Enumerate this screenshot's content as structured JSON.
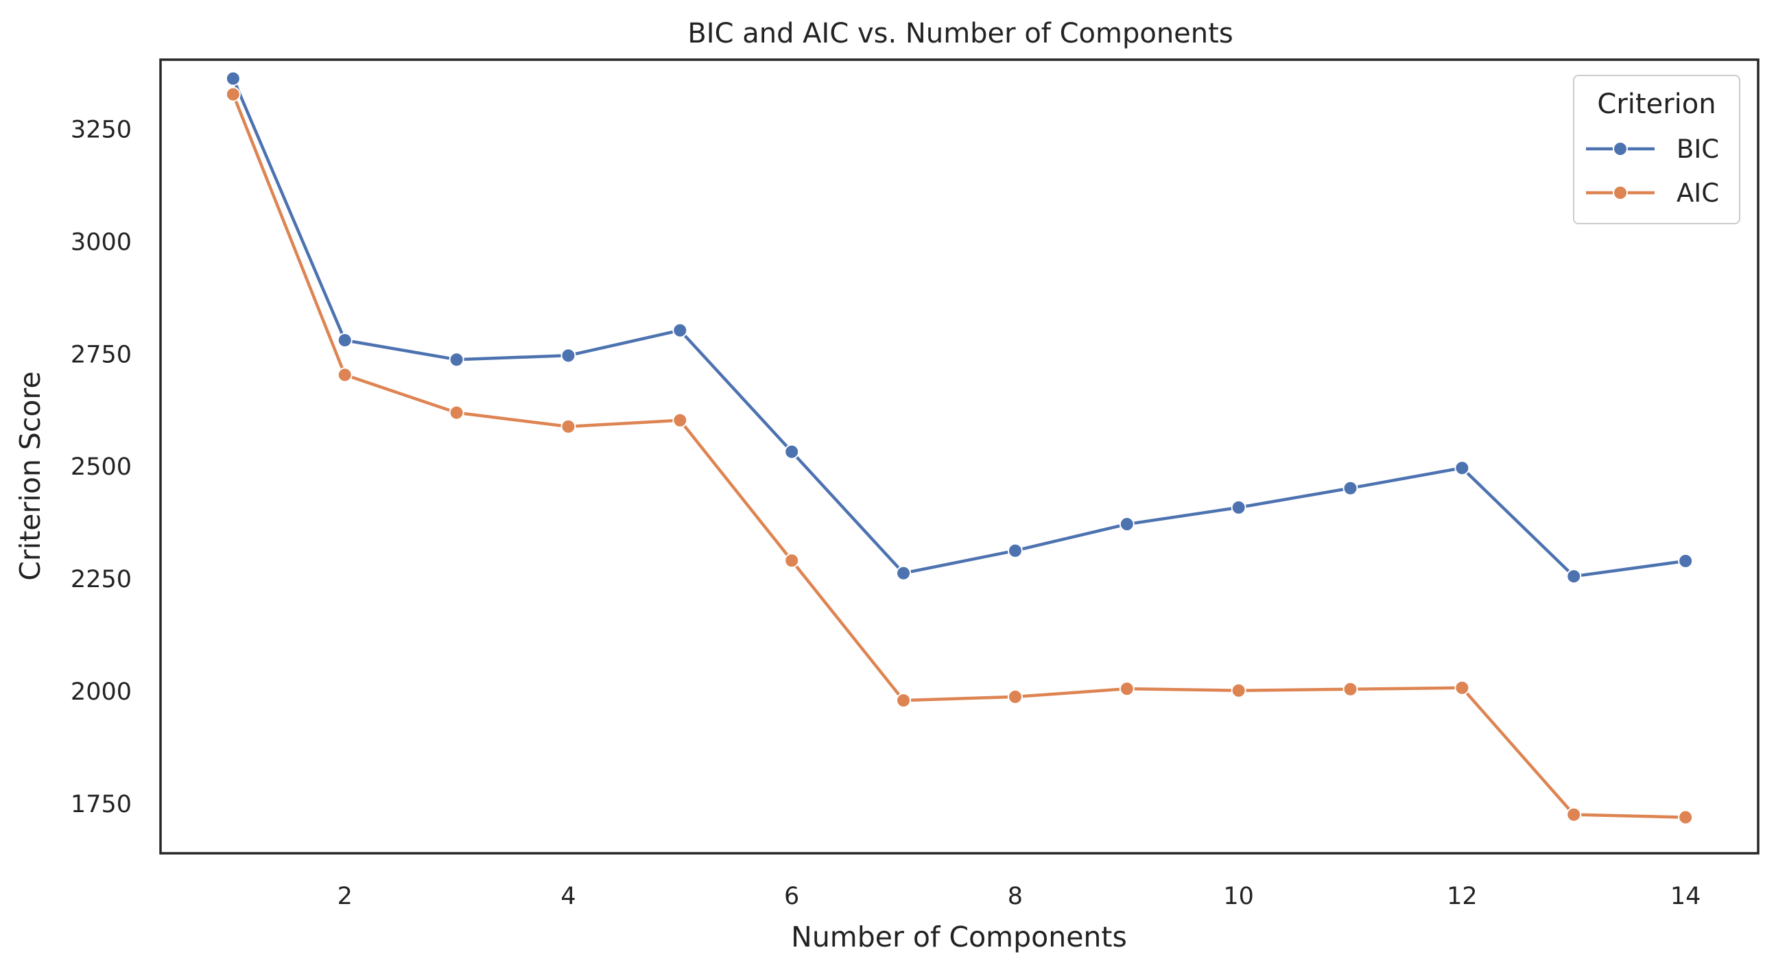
{
  "chart_data": {
    "type": "line",
    "title": "BIC and AIC vs. Number of Components",
    "xlabel": "Number of Components",
    "ylabel": "Criterion Score",
    "x": [
      1,
      2,
      3,
      4,
      5,
      6,
      7,
      8,
      9,
      10,
      11,
      12,
      13,
      14
    ],
    "xlim": [
      0.35,
      14.65
    ],
    "ylim": [
      1640,
      3405
    ],
    "xticks": [
      2,
      4,
      6,
      8,
      10,
      12,
      14
    ],
    "yticks": [
      1750,
      2000,
      2250,
      2500,
      2750,
      3000,
      3250
    ],
    "grid": false,
    "legend": {
      "title": "Criterion",
      "placement": "top-right"
    },
    "series": [
      {
        "name": "BIC",
        "color": "#4c72b0",
        "marker": "circle",
        "values": [
          3363,
          2781,
          2738,
          2747,
          2803,
          2533,
          2263,
          2313,
          2372,
          2409,
          2452,
          2497,
          2256,
          2290
        ]
      },
      {
        "name": "AIC",
        "color": "#dd8452",
        "marker": "circle",
        "values": [
          3328,
          2704,
          2620,
          2589,
          2603,
          2291,
          1980,
          1988,
          2006,
          2002,
          2005,
          2008,
          1726,
          1720
        ]
      }
    ]
  }
}
